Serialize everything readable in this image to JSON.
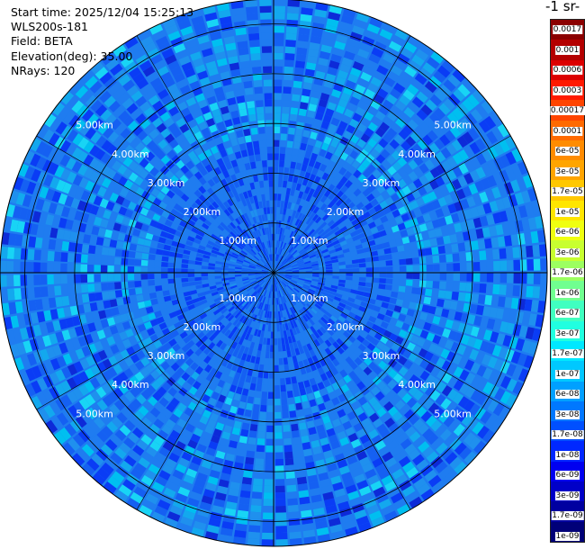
{
  "header": {
    "start_time": "Start time: 2025/12/04 15:25:13",
    "instrument": "WLS200s-181",
    "field": "Field: BETA",
    "elevation": "Elevation(deg): 35.00",
    "nrays": "NRays: 120"
  },
  "colorbar": {
    "title_fragment": "-1 sr-",
    "ticks": [
      "0.0017",
      "0.001",
      "0.0006",
      "0.0003",
      "0.00017",
      "0.0001",
      "6e-05",
      "3e-05",
      "1.7e-05",
      "1e-05",
      "6e-06",
      "3e-06",
      "1.7e-06",
      "1e-06",
      "6e-07",
      "3e-07",
      "1.7e-07",
      "1e-07",
      "6e-08",
      "3e-08",
      "1.7e-08",
      "1e-08",
      "6e-09",
      "3e-09",
      "1.7e-09",
      "1e-09"
    ],
    "colors": [
      "#8b0000",
      "#b40000",
      "#dc0000",
      "#ff1a00",
      "#ff4500",
      "#ff6a00",
      "#ff8c00",
      "#ffa500",
      "#ffc800",
      "#ffe600",
      "#f0ff10",
      "#c8ff30",
      "#9cff60",
      "#70ff90",
      "#40ffc0",
      "#20ffe0",
      "#00e8ff",
      "#00c8ff",
      "#00a0ff",
      "#0078ff",
      "#0050ff",
      "#0028ff",
      "#0000f0",
      "#0000c8",
      "#0000a0",
      "#000078"
    ]
  },
  "chart_data": {
    "type": "heatmap",
    "projection": "polar (PPI)",
    "field": "BETA",
    "elevation_deg": 35.0,
    "n_rays": 120,
    "range_rings_km": [
      1,
      2,
      3,
      4,
      5
    ],
    "range_labels": [
      "1.00km",
      "2.00km",
      "3.00km",
      "4.00km",
      "5.00km"
    ],
    "max_range_km": 5.5,
    "colorscale": "log",
    "value_range": [
      1e-09,
      0.0017
    ],
    "dominant_values": [
      3e-08,
      1e-07
    ]
  }
}
